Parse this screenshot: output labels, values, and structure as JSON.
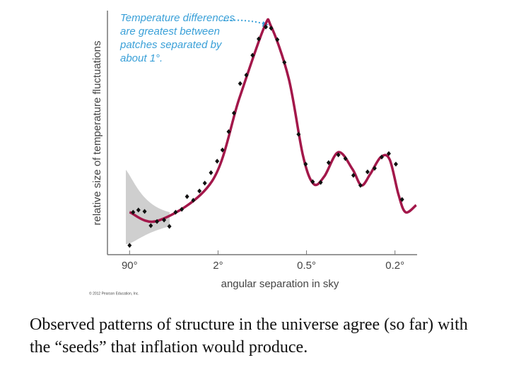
{
  "chart_data": {
    "type": "scatter",
    "y_label": "relative size of temperature fluctuations",
    "x_label": "angular separation in sky",
    "annotation": [
      "Temperature differences",
      "are greatest between",
      "patches separated by",
      "about 1°."
    ],
    "credit": "© 2012 Pearson Education, Inc.",
    "xlim": [
      -0.25,
      3.25
    ],
    "ylim": [
      0,
      100
    ],
    "xticks": [
      {
        "value": 0,
        "label": "90°"
      },
      {
        "value": 1,
        "label": "2°"
      },
      {
        "value": 2,
        "label": "0.5°"
      },
      {
        "value": 3,
        "label": "0.2°"
      }
    ],
    "series": [
      {
        "color": "#111111",
        "x": [
          0,
          0.04,
          0.1,
          0.17,
          0.24,
          0.31,
          0.39,
          0.45,
          0.52,
          0.59,
          0.65,
          0.72,
          0.79,
          0.85,
          0.92,
          0.99,
          1.05,
          1.12,
          1.18,
          1.25,
          1.32,
          1.39,
          1.46,
          1.54,
          1.6,
          1.67,
          1.75,
          1.91,
          1.99,
          2.07,
          2.16,
          2.25,
          2.36,
          2.44,
          2.53,
          2.61,
          2.69,
          2.77,
          2.85,
          2.93,
          3.01,
          3.08
        ],
        "values": [
          3.8,
          17.4,
          18.3,
          17.7,
          11.9,
          13.6,
          14.2,
          11.6,
          17.4,
          18.6,
          23.8,
          22.3,
          26.1,
          29.3,
          33.6,
          38.3,
          42.9,
          50.4,
          58.0,
          70.1,
          73.6,
          81.7,
          88.4,
          93.3,
          92.8,
          88.1,
          78.8,
          49.3,
          37.1,
          29.9,
          29.6,
          37.7,
          40.9,
          39.4,
          32.5,
          28.4,
          33.9,
          35.4,
          40.0,
          41.4,
          37.1,
          22.6
        ]
      },
      {
        "color": "#a3174a",
        "mode": "line",
        "x": [
          0,
          0.33,
          0.93,
          1.24,
          1.52,
          1.6,
          1.8,
          1.96,
          2.08,
          2.2,
          2.36,
          2.52,
          2.62,
          2.72,
          2.84,
          2.94,
          3.04,
          3.12,
          3.24
        ],
        "values": [
          17.4,
          14,
          30,
          64,
          93,
          93.5,
          72,
          40.6,
          29,
          32,
          42,
          35,
          28.4,
          33,
          40,
          39,
          24.6,
          17.4,
          20.3
        ]
      }
    ]
  },
  "caption": "Observed patterns of structure in the universe agree (so far) with the “seeds” that inflation would produce."
}
